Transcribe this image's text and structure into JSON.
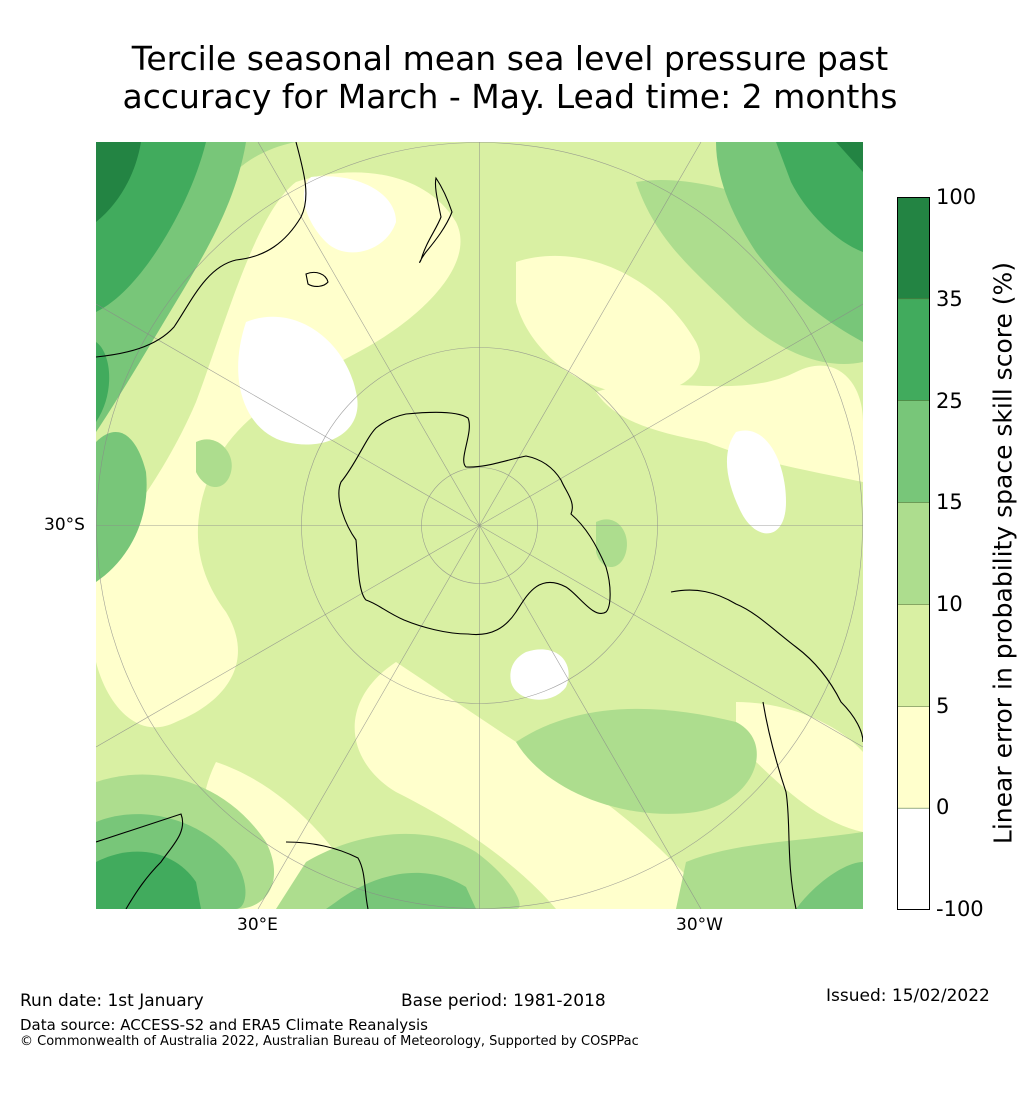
{
  "title": {
    "line1": "Tercile seasonal mean sea level pressure past",
    "line2": "accuracy for March - May. Lead time: 2 months"
  },
  "map": {
    "projection": "south polar stereographic",
    "lat_label": "30°S",
    "lon_labels": {
      "left": "30°E",
      "right": "30°W"
    },
    "fill_classes": [
      "0-5",
      "5-10",
      "10-15",
      "15-25",
      "25-35",
      "35-100"
    ],
    "colors": {
      "very_low": "#ffffff",
      "low": "#ffffcc",
      "c5_10": "#d9f0a3",
      "c10_15": "#addd8e",
      "c15_25": "#78c679",
      "c25_35": "#41ab5d",
      "c35_100": "#238443"
    }
  },
  "colorbar": {
    "label": "Linear error in probability space skill score (%)",
    "ticks": [
      "100",
      "35",
      "25",
      "15",
      "10",
      "5",
      "0",
      "-100"
    ],
    "colors": [
      "#238443",
      "#41ab5d",
      "#78c679",
      "#addd8e",
      "#d9f0a3",
      "#ffffcc",
      "#ffffff"
    ]
  },
  "footer": {
    "run_date": "Run date: 1st January",
    "base_period": "Base period: 1981-2018",
    "issued": "Issued: 15/02/2022",
    "data_source": "Data source: ACCESS-S2 and ERA5 Climate Reanalysis",
    "copyright": "© Commonwealth of Australia 2022, Australian Bureau of Meteorology, Supported by COSPPac"
  }
}
